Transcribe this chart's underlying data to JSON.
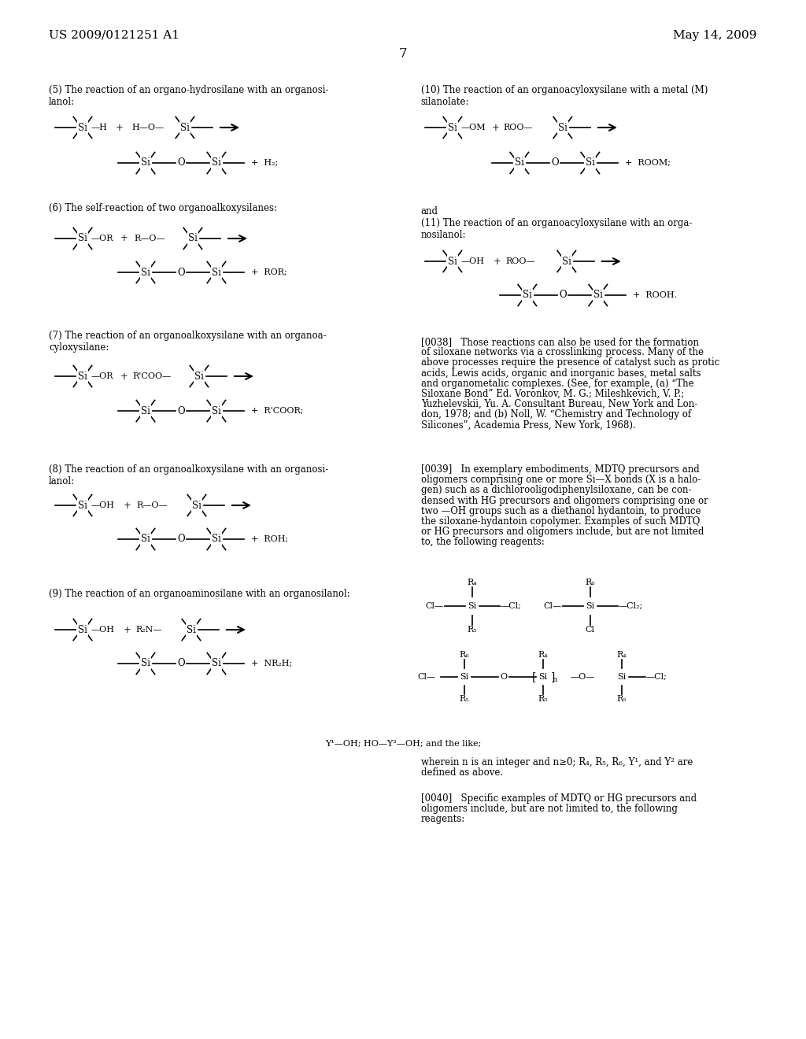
{
  "bg_color": "#ffffff",
  "header_left": "US 2009/0121251 A1",
  "header_right": "May 14, 2009",
  "page_number": "7",
  "font_body": 8.5,
  "font_header": 11,
  "sec5_label": "(5) The reaction of an organo-hydrosilane with an organosi-\nlanol:",
  "sec6_label": "(6) The self-reaction of two organoalkoxysilanes:",
  "sec7_label": "(7) The reaction of an organoalkoxysilane with an organoa-\ncyloxysilane:",
  "sec8_label": "(8) The reaction of an organoalkoxysilane with an organosi-\nlanol:",
  "sec9_label": "(9) The reaction of an organoaminosilane with an organosilanol:",
  "sec10_label": "(10) The reaction of an organoacyloxysilane with a metal (M)\nsilanolate:",
  "sec11_label": "(11) The reaction of an organoacyloxysilane with an orga-\nnosilanol:",
  "and_label": "and",
  "p0038": "[0038]   Those reactions can also be used for the formation of siloxane networks via a crosslinking process. Many of the above processes require the presence of catalyst such as protic acids, Lewis acids, organic and inorganic bases, metal salts and organometalic complexes. (See, for example, (a) “The Siloxane Bond” Ed. Voronkov, M. G.; Mileshkevich, V. P.; Yuzhelevskii, Yu. A. Consultant Bureau, New York and London, 1978; and (b) Noll, W. “Chemistry and Technology of Silicones”, Academia Press, New York, 1968).",
  "p0039": "[0039]   In exemplary embodiments, MDTQ precursors and oligomers comprising one or more Si—X bonds (X is a halogen) such as a dichlorooligodiphenylsiloxane, can be condensed with HG precursors and oligomers comprising one or two —OH groups such as a diethanol hydantoin, to produce the siloxane-hydantoin copolymer. Examples of such MDTQ or HG precursors and oligomers include, but are not limited to, the following reagents:",
  "y_note": "Y¹—OH; HO—Y²—OH; and the like;",
  "wherein": "wherein n is an integer and n≥0; R₄, R₅, R₆, Y¹, and Y² are\ndefined as above.",
  "p0040": "[0040]   Specific examples of MDTQ or HG precursors and\noligomers include, but are not limited to, the following\nreagents:"
}
